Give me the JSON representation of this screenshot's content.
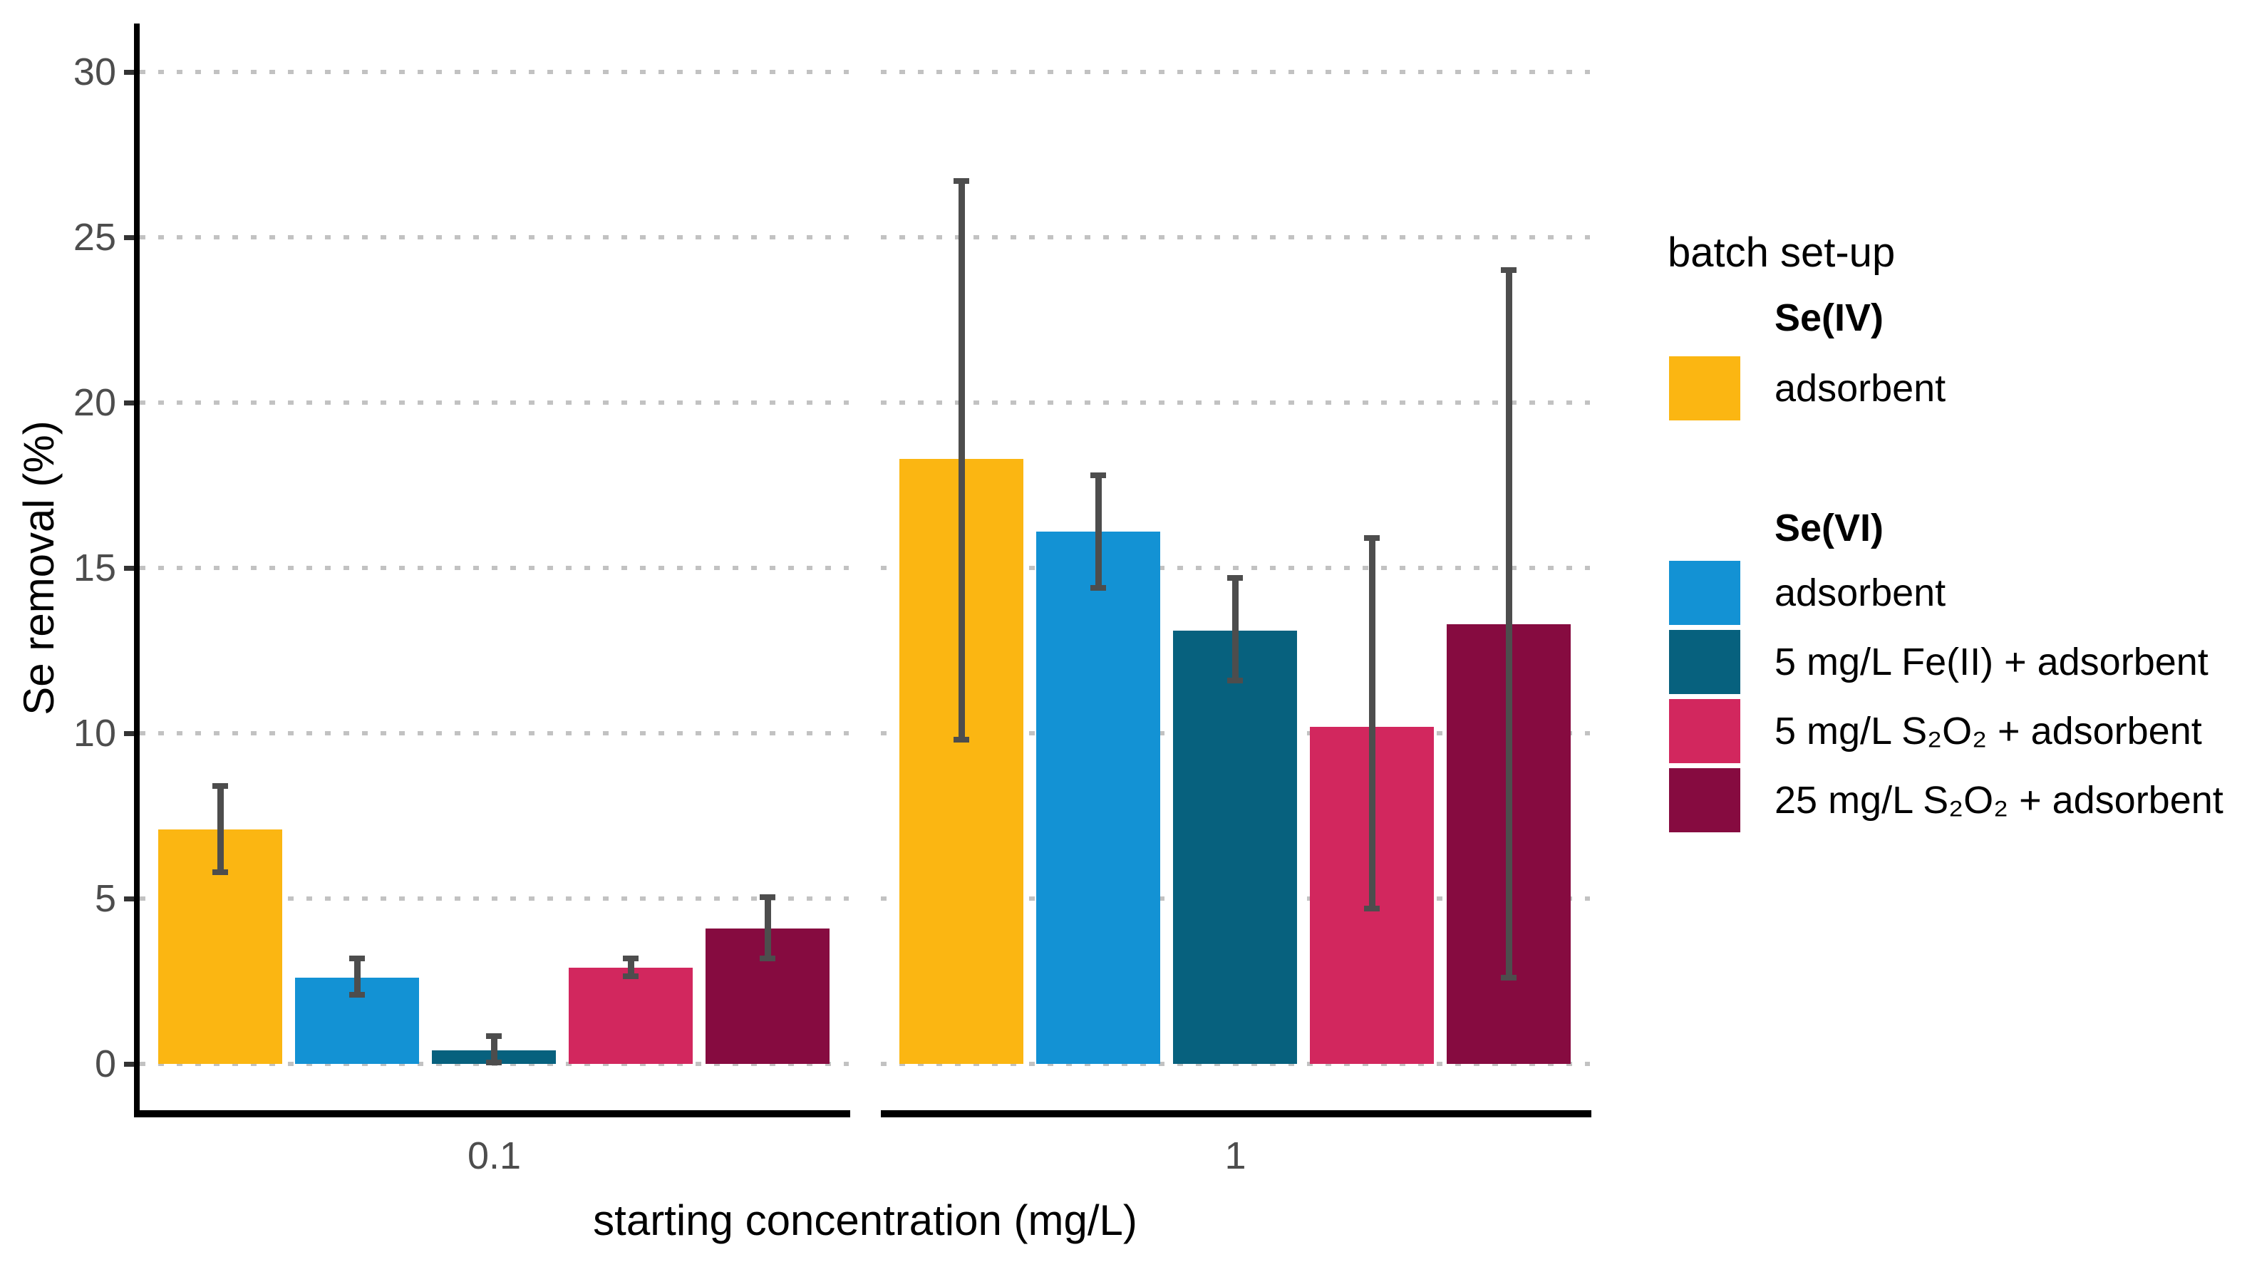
{
  "chart_data": {
    "type": "bar",
    "title": "",
    "xlabel": "starting concentration (mg/L)",
    "ylabel": "Se removal (%)",
    "ylim": [
      0,
      30
    ],
    "yticks": [
      0,
      5,
      10,
      15,
      20,
      25,
      30
    ],
    "categories": [
      "0.1",
      "1"
    ],
    "grid": {
      "axis": "y",
      "style": "dotted",
      "color": "#C2C2C2"
    },
    "legend_position": "right",
    "error_bar_color": "#4D4D4D",
    "axis_color": "#000000",
    "tick_label_color": "#4D4D4D",
    "series": [
      {
        "group": "Se(IV)",
        "name": "adsorbent",
        "color": "#FBB612",
        "values": [
          7.1,
          18.3
        ],
        "err_low": [
          5.8,
          9.8
        ],
        "err_high": [
          8.4,
          26.7
        ]
      },
      {
        "group": "Se(VI)",
        "name": "adsorbent",
        "color": "#1392D4",
        "values": [
          2.6,
          16.1
        ],
        "err_low": [
          2.1,
          14.4
        ],
        "err_high": [
          3.2,
          17.8
        ]
      },
      {
        "group": "Se(VI)",
        "name": "5 mg/L Fe(II) + adsorbent",
        "color": "#07617E",
        "values": [
          0.4,
          13.1
        ],
        "err_low": [
          0.05,
          11.6
        ],
        "err_high": [
          0.85,
          14.7
        ]
      },
      {
        "group": "Se(VI)",
        "name": "5 mg/L S₂O₂ + adsorbent",
        "color": "#D2275E",
        "values": [
          2.9,
          10.2
        ],
        "err_low": [
          2.65,
          4.7
        ],
        "err_high": [
          3.2,
          15.9
        ]
      },
      {
        "group": "Se(VI)",
        "name": "25 mg/L S₂O₂ + adsorbent",
        "color": "#860B40",
        "values": [
          4.1,
          13.3
        ],
        "err_low": [
          3.2,
          2.6
        ],
        "err_high": [
          5.05,
          24.0
        ]
      }
    ]
  },
  "legend": {
    "title": "batch set-up",
    "sections": [
      {
        "header": "Se(IV)",
        "items": [
          {
            "label": "adsorbent",
            "color": "#FBB612"
          }
        ]
      },
      {
        "header": "Se(VI)",
        "items": [
          {
            "label": "adsorbent",
            "color": "#1392D4"
          },
          {
            "label": "5 mg/L Fe(II) + adsorbent",
            "color": "#07617E"
          },
          {
            "label": "5 mg/L S₂O₂ + adsorbent",
            "color": "#D2275E"
          },
          {
            "label": "25 mg/L S₂O₂ + adsorbent",
            "color": "#860B40"
          }
        ]
      }
    ]
  }
}
